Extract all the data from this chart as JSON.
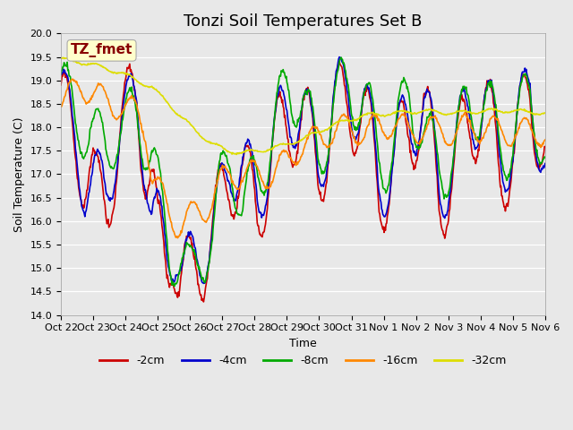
{
  "title": "Tonzi Soil Temperatures Set B",
  "xlabel": "Time",
  "ylabel": "Soil Temperature (C)",
  "ylim": [
    14.0,
    20.0
  ],
  "yticks": [
    14.0,
    14.5,
    15.0,
    15.5,
    16.0,
    16.5,
    17.0,
    17.5,
    18.0,
    18.5,
    19.0,
    19.5,
    20.0
  ],
  "line_colors": [
    "#cc0000",
    "#0000cc",
    "#00aa00",
    "#ff8800",
    "#dddd00"
  ],
  "line_labels": [
    "-2cm",
    "-4cm",
    "-8cm",
    "-16cm",
    "-32cm"
  ],
  "line_widths": [
    1.2,
    1.2,
    1.2,
    1.2,
    1.2
  ],
  "bg_color": "#e8e8e8",
  "annotation_text": "TZ_fmet",
  "annotation_color": "#880000",
  "annotation_bg": "#ffffcc",
  "title_fontsize": 13,
  "label_fontsize": 9,
  "tick_fontsize": 8,
  "legend_fontsize": 9,
  "x_tick_labels": [
    "Oct 22",
    "Oct 23",
    "Oct 24",
    "Oct 25",
    "Oct 26",
    "Oct 27",
    "Oct 28",
    "Oct 29",
    "Oct 30",
    "Oct 31",
    "Nov 1",
    "Nov 2",
    "Nov 3",
    "Nov 4",
    "Nov 5",
    "Nov 6"
  ],
  "grid_color": "#ffffff",
  "figsize": [
    6.4,
    4.8
  ],
  "dpi": 100
}
